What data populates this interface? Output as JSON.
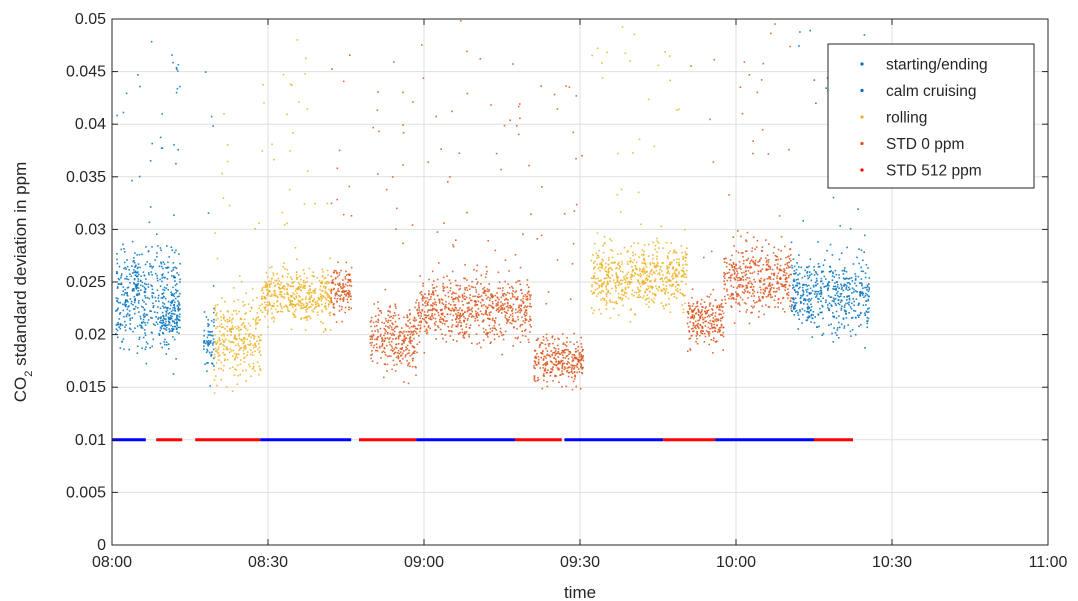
{
  "chart_data": {
    "type": "scatter",
    "title": "",
    "xlabel": "time",
    "ylabel_main": "CO",
    "ylabel_sub": "2",
    "ylabel_rest": " stdandard deviation in ppm",
    "xlim": [
      0,
      180
    ],
    "ylim": [
      0,
      0.05
    ],
    "x_ticks": [
      0,
      30,
      60,
      90,
      120,
      150,
      180
    ],
    "x_tick_labels": [
      "08:00",
      "08:30",
      "09:00",
      "09:30",
      "10:00",
      "10:30",
      "11:00"
    ],
    "y_ticks": [
      0,
      0.005,
      0.01,
      0.015,
      0.02,
      0.025,
      0.03,
      0.035,
      0.04,
      0.045,
      0.05
    ],
    "y_tick_labels": [
      "0",
      "0.005",
      "0.01",
      "0.015",
      "0.02",
      "0.025",
      "0.03",
      "0.035",
      "0.04",
      "0.045",
      "0.05"
    ],
    "grid": true,
    "legend_position": "top-right",
    "series": [
      {
        "name": "starting/ending",
        "color": "#0072bd",
        "marker": "dot",
        "segments": [
          {
            "start": 0.5,
            "end": 13.0,
            "mean": 0.0235,
            "spread": 0.0045
          },
          {
            "start": 17.5,
            "end": 19.5,
            "mean": 0.0195,
            "spread": 0.003
          },
          {
            "start": 130.5,
            "end": 145.5,
            "mean": 0.0238,
            "spread": 0.0035
          }
        ]
      },
      {
        "name": "calm cruising",
        "color": "#0072bd",
        "marker": "dot",
        "segments": [
          {
            "start": 4.0,
            "end": 5.0,
            "mean": 0.0255,
            "spread": 0.0025
          },
          {
            "start": 9.0,
            "end": 13.0,
            "mean": 0.0215,
            "spread": 0.0025
          }
        ]
      },
      {
        "name": "rolling",
        "color": "#edb120",
        "marker": "dot",
        "segments": [
          {
            "start": 19.5,
            "end": 28.5,
            "mean": 0.0195,
            "spread": 0.0035
          },
          {
            "start": 28.5,
            "end": 42.0,
            "mean": 0.0238,
            "spread": 0.0025
          },
          {
            "start": 92.0,
            "end": 110.5,
            "mean": 0.0255,
            "spread": 0.003
          }
        ]
      },
      {
        "name": "STD 0 ppm",
        "color": "#d95319",
        "marker": "dot",
        "segments": [
          {
            "start": 42.0,
            "end": 46.0,
            "mean": 0.0242,
            "spread": 0.002
          },
          {
            "start": 49.5,
            "end": 58.5,
            "mean": 0.0198,
            "spread": 0.003
          },
          {
            "start": 58.5,
            "end": 80.5,
            "mean": 0.0225,
            "spread": 0.003
          },
          {
            "start": 81.0,
            "end": 90.5,
            "mean": 0.0175,
            "spread": 0.0022
          },
          {
            "start": 110.5,
            "end": 117.5,
            "mean": 0.0215,
            "spread": 0.0025
          },
          {
            "start": 117.5,
            "end": 130.5,
            "mean": 0.0255,
            "spread": 0.0032
          }
        ]
      },
      {
        "name": "STD 512 ppm",
        "color": "#ff0000",
        "marker": "dot",
        "segments": []
      }
    ],
    "reference_bars": [
      {
        "start": 0.0,
        "end": 6.5,
        "y": 0.01,
        "color": "#0000ff"
      },
      {
        "start": 8.5,
        "end": 13.5,
        "y": 0.01,
        "color": "#ff0000"
      },
      {
        "start": 16.0,
        "end": 28.5,
        "y": 0.01,
        "color": "#ff0000"
      },
      {
        "start": 28.5,
        "end": 46.0,
        "y": 0.01,
        "color": "#0000ff"
      },
      {
        "start": 47.5,
        "end": 58.5,
        "y": 0.01,
        "color": "#ff0000"
      },
      {
        "start": 58.5,
        "end": 77.5,
        "y": 0.01,
        "color": "#0000ff"
      },
      {
        "start": 77.5,
        "end": 86.5,
        "y": 0.01,
        "color": "#ff0000"
      },
      {
        "start": 87.0,
        "end": 106.0,
        "y": 0.01,
        "color": "#0000ff"
      },
      {
        "start": 106.0,
        "end": 116.0,
        "y": 0.01,
        "color": "#ff0000"
      },
      {
        "start": 116.0,
        "end": 135.0,
        "y": 0.01,
        "color": "#0000ff"
      },
      {
        "start": 135.0,
        "end": 142.5,
        "y": 0.01,
        "color": "#ff0000"
      }
    ]
  }
}
